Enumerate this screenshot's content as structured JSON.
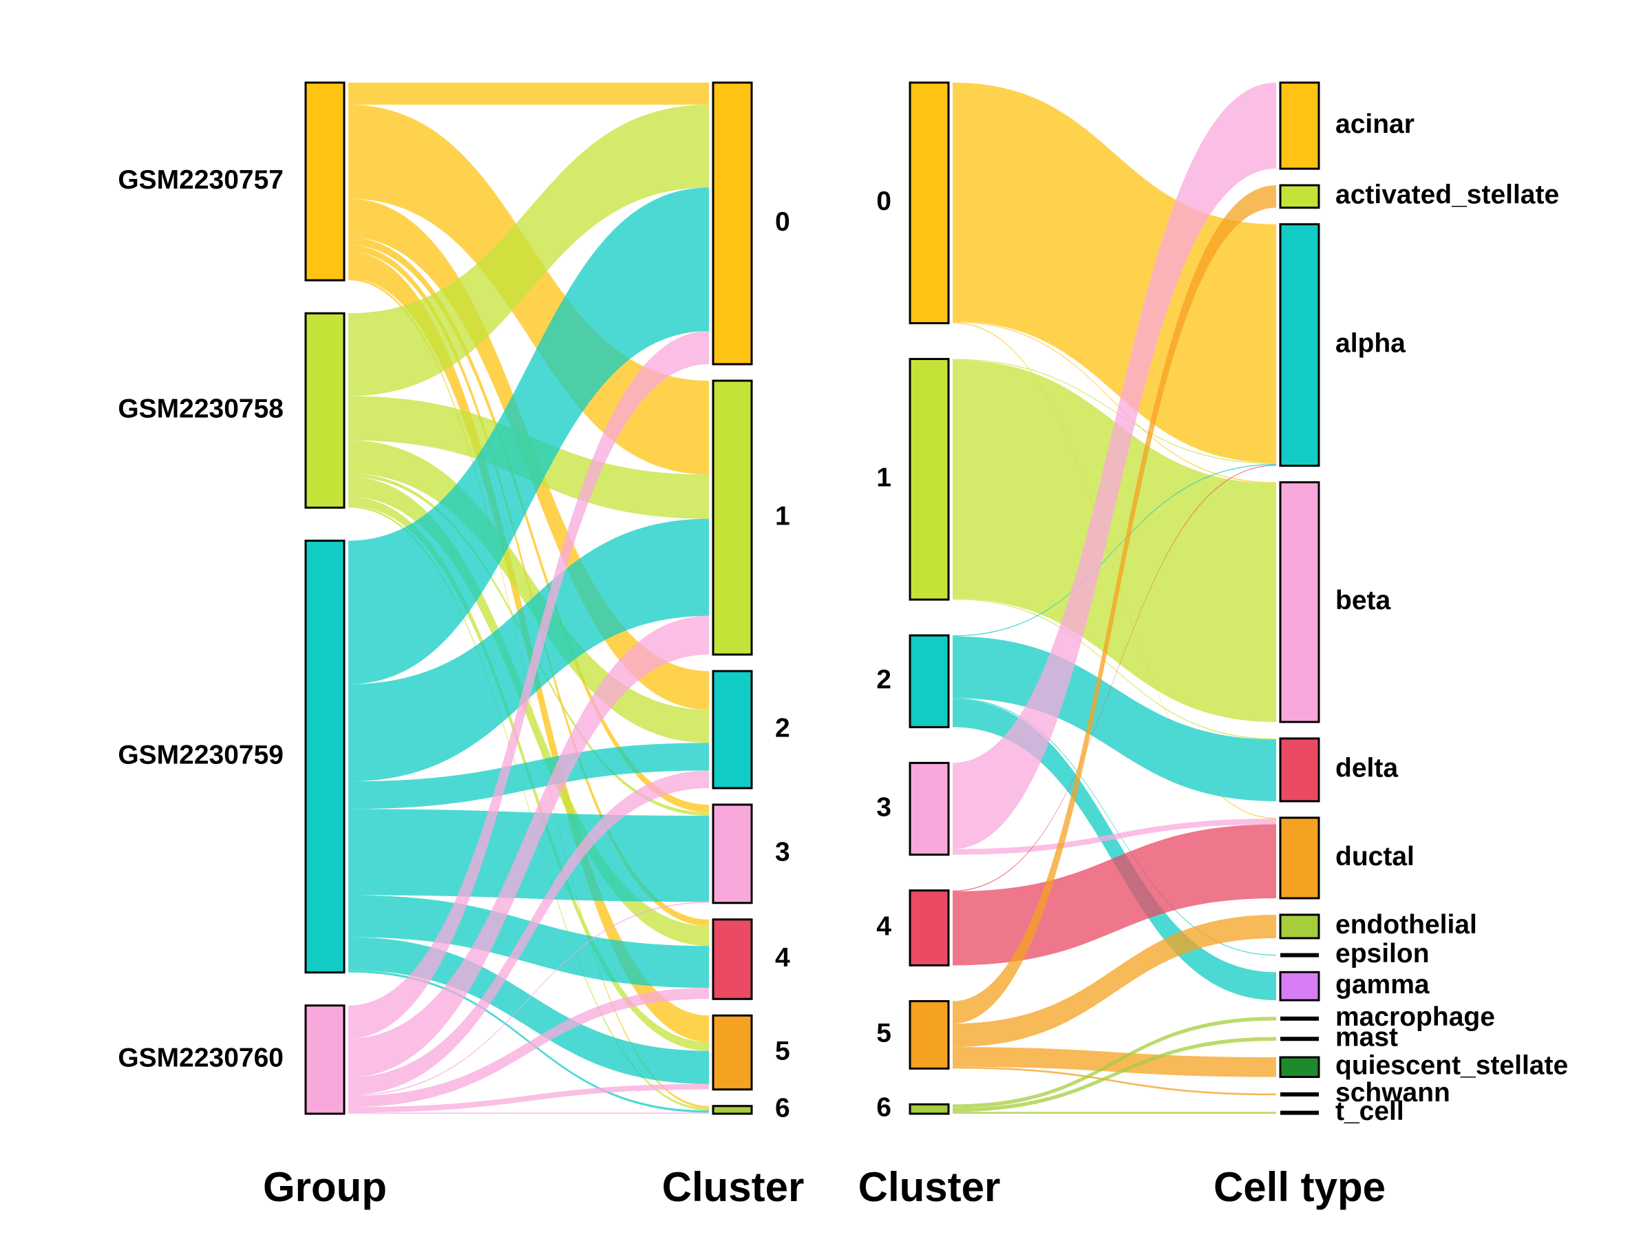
{
  "chart_data": [
    {
      "type": "sankey",
      "axes": [
        "Group",
        "Cluster"
      ],
      "nodes": {
        "Group": [
          {
            "name": "GSM2230757",
            "color": "#FFC313"
          },
          {
            "name": "GSM2230758",
            "color": "#C4E339"
          },
          {
            "name": "GSM2230759",
            "color": "#11CCC4"
          },
          {
            "name": "GSM2230760",
            "color": "#F9A8DC"
          }
        ],
        "Cluster": [
          {
            "name": "0",
            "color": "#FFC313"
          },
          {
            "name": "1",
            "color": "#C4E339"
          },
          {
            "name": "2",
            "color": "#11CCC4"
          },
          {
            "name": "3",
            "color": "#F9A8DC"
          },
          {
            "name": "4",
            "color": "#EA4A64"
          },
          {
            "name": "5",
            "color": "#F5A121"
          },
          {
            "name": "6",
            "color": "#A6CD3B"
          }
        ]
      },
      "flows": [
        {
          "from": "GSM2230757",
          "to": "0",
          "value": 20
        },
        {
          "from": "GSM2230757",
          "to": "1",
          "value": 85
        },
        {
          "from": "GSM2230757",
          "to": "2",
          "value": 35
        },
        {
          "from": "GSM2230757",
          "to": "3",
          "value": 7
        },
        {
          "from": "GSM2230757",
          "to": "4",
          "value": 6
        },
        {
          "from": "GSM2230757",
          "to": "5",
          "value": 24
        },
        {
          "from": "GSM2230757",
          "to": "6",
          "value": 2
        },
        {
          "from": "GSM2230758",
          "to": "0",
          "value": 75
        },
        {
          "from": "GSM2230758",
          "to": "1",
          "value": 40
        },
        {
          "from": "GSM2230758",
          "to": "2",
          "value": 30
        },
        {
          "from": "GSM2230758",
          "to": "3",
          "value": 3
        },
        {
          "from": "GSM2230758",
          "to": "4",
          "value": 18
        },
        {
          "from": "GSM2230758",
          "to": "5",
          "value": 8
        },
        {
          "from": "GSM2230758",
          "to": "6",
          "value": 2
        },
        {
          "from": "GSM2230759",
          "to": "0",
          "value": 130
        },
        {
          "from": "GSM2230759",
          "to": "1",
          "value": 88
        },
        {
          "from": "GSM2230759",
          "to": "2",
          "value": 25
        },
        {
          "from": "GSM2230759",
          "to": "3",
          "value": 78
        },
        {
          "from": "GSM2230759",
          "to": "4",
          "value": 38
        },
        {
          "from": "GSM2230759",
          "to": "5",
          "value": 30
        },
        {
          "from": "GSM2230759",
          "to": "6",
          "value": 2
        },
        {
          "from": "GSM2230760",
          "to": "0",
          "value": 30
        },
        {
          "from": "GSM2230760",
          "to": "1",
          "value": 35
        },
        {
          "from": "GSM2230760",
          "to": "2",
          "value": 16
        },
        {
          "from": "GSM2230760",
          "to": "3",
          "value": 1
        },
        {
          "from": "GSM2230760",
          "to": "4",
          "value": 10
        },
        {
          "from": "GSM2230760",
          "to": "5",
          "value": 5
        },
        {
          "from": "GSM2230760",
          "to": "6",
          "value": 1
        }
      ]
    },
    {
      "type": "sankey",
      "axes": [
        "Cluster",
        "Cell type"
      ],
      "nodes": {
        "Cluster": [
          {
            "name": "0",
            "color": "#FFC313"
          },
          {
            "name": "1",
            "color": "#C4E339"
          },
          {
            "name": "2",
            "color": "#11CCC4"
          },
          {
            "name": "3",
            "color": "#F9A8DC"
          },
          {
            "name": "4",
            "color": "#EA4A64"
          },
          {
            "name": "5",
            "color": "#F5A121"
          },
          {
            "name": "6",
            "color": "#A6CD3B"
          }
        ],
        "Cell type": [
          {
            "name": "acinar",
            "color": "#FFC313"
          },
          {
            "name": "activated_stellate",
            "color": "#C4E339"
          },
          {
            "name": "alpha",
            "color": "#11CCC4"
          },
          {
            "name": "beta",
            "color": "#F9A8DC"
          },
          {
            "name": "delta",
            "color": "#EA4A64"
          },
          {
            "name": "ductal",
            "color": "#F5A121"
          },
          {
            "name": "endothelial",
            "color": "#A6CD3B"
          },
          {
            "name": "epsilon",
            "color": "#000000"
          },
          {
            "name": "gamma",
            "color": "#D87DF5"
          },
          {
            "name": "macrophage",
            "color": "#000000"
          },
          {
            "name": "mast",
            "color": "#000000"
          },
          {
            "name": "quiescent_stellate",
            "color": "#1E8A2C"
          },
          {
            "name": "schwann",
            "color": "#000000"
          },
          {
            "name": "t_cell",
            "color": "#000000"
          }
        ]
      },
      "flows": [
        {
          "from": "0",
          "to": "alpha",
          "value": 255
        },
        {
          "from": "0",
          "to": "beta",
          "value": 1
        },
        {
          "from": "0",
          "to": "ductal",
          "value": 1
        },
        {
          "from": "1",
          "to": "beta",
          "value": 255
        },
        {
          "from": "1",
          "to": "alpha",
          "value": 1
        },
        {
          "from": "1",
          "to": "delta",
          "value": 1
        },
        {
          "from": "2",
          "to": "delta",
          "value": 66
        },
        {
          "from": "2",
          "to": "gamma",
          "value": 30
        },
        {
          "from": "2",
          "to": "alpha",
          "value": 1
        },
        {
          "from": "2",
          "to": "epsilon",
          "value": 1
        },
        {
          "from": "3",
          "to": "acinar",
          "value": 92
        },
        {
          "from": "3",
          "to": "ductal",
          "value": 6
        },
        {
          "from": "4",
          "to": "ductal",
          "value": 79
        },
        {
          "from": "4",
          "to": "alpha",
          "value": 1
        },
        {
          "from": "5",
          "to": "activated_stellate",
          "value": 24
        },
        {
          "from": "5",
          "to": "endothelial",
          "value": 25
        },
        {
          "from": "5",
          "to": "quiescent_stellate",
          "value": 21
        },
        {
          "from": "5",
          "to": "schwann",
          "value": 2
        },
        {
          "from": "6",
          "to": "macrophage",
          "value": 4
        },
        {
          "from": "6",
          "to": "mast",
          "value": 4
        },
        {
          "from": "6",
          "to": "t_cell",
          "value": 2
        }
      ]
    }
  ]
}
